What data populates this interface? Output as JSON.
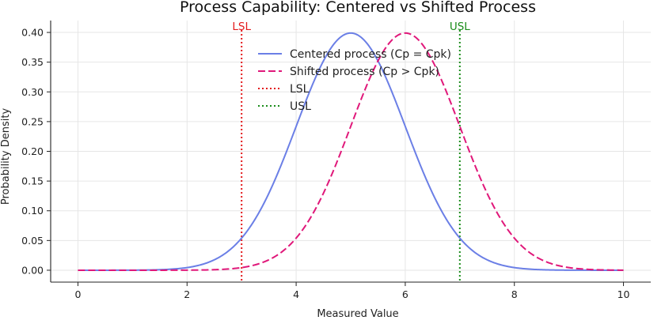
{
  "chart_data": {
    "type": "line",
    "title": "Process Capability: Centered vs Shifted Process",
    "xlabel": "Measured Value",
    "ylabel": "Probability Density",
    "xlim": [
      -0.5,
      10.5
    ],
    "ylim": [
      -0.02,
      0.42
    ],
    "xticks": [
      0,
      2,
      4,
      6,
      8,
      10
    ],
    "yticks": [
      0.0,
      0.05,
      0.1,
      0.15,
      0.2,
      0.25,
      0.3,
      0.35,
      0.4
    ],
    "ytick_labels": [
      "0.00",
      "0.05",
      "0.10",
      "0.15",
      "0.20",
      "0.25",
      "0.30",
      "0.35",
      "0.40"
    ],
    "grid": true,
    "legend_position": "upper-center",
    "x": [
      0,
      0.5,
      1,
      1.5,
      2,
      2.5,
      3,
      3.5,
      4,
      4.5,
      5,
      5.5,
      6,
      6.5,
      7,
      7.5,
      8,
      8.5,
      9,
      9.5,
      10
    ],
    "series": [
      {
        "name": "Centered process (Cp = Cpk)",
        "color": "#6b7fe6",
        "style": "solid",
        "values": [
          0.0,
          0.0,
          0.0001,
          0.0009,
          0.0044,
          0.0175,
          0.054,
          0.1295,
          0.242,
          0.3521,
          0.3989,
          0.3521,
          0.242,
          0.1295,
          0.054,
          0.0175,
          0.0044,
          0.0009,
          0.0001,
          0.0,
          0.0
        ]
      },
      {
        "name": "Shifted process (Cp > Cpk)",
        "color": "#e0187a",
        "style": "dashed",
        "values": [
          0.0,
          0.0,
          0.0,
          0.0,
          0.0001,
          0.0009,
          0.0044,
          0.0175,
          0.054,
          0.1295,
          0.242,
          0.3521,
          0.3989,
          0.3521,
          0.242,
          0.1295,
          0.054,
          0.0175,
          0.0044,
          0.0009,
          0.0001
        ]
      }
    ],
    "vlines": [
      {
        "name": "LSL",
        "x": 3,
        "color": "#e31a1c",
        "style": "dotted",
        "label": "LSL"
      },
      {
        "name": "USL",
        "x": 7,
        "color": "#1a8c1a",
        "style": "dotted",
        "label": "USL"
      }
    ]
  }
}
